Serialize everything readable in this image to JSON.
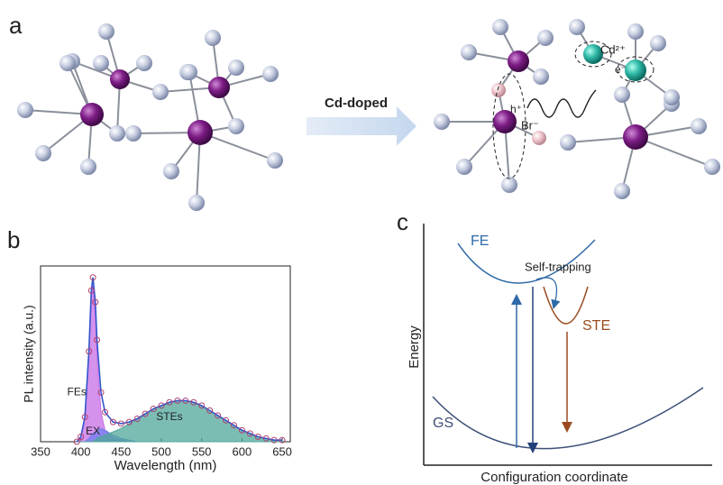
{
  "panel_a": {
    "label": "a",
    "arrow_label": "Cd-doped",
    "dopant": "Cd²⁺",
    "electron": "e⁻",
    "hole": "h⁺",
    "bromide": "Br⁻"
  },
  "chart_data": {
    "type": "area",
    "panel_label": "b",
    "xlabel": "Wavelength (nm)",
    "ylabel": "PL intensity (a.u.)",
    "xlim": [
      350,
      660
    ],
    "xticks": [
      350,
      400,
      450,
      500,
      550,
      600,
      650
    ],
    "ylim": [
      0,
      1.07
    ],
    "x": [
      395,
      400,
      405,
      410,
      413,
      415,
      418,
      420,
      425,
      430,
      440,
      450,
      460,
      470,
      480,
      490,
      500,
      510,
      520,
      530,
      540,
      550,
      560,
      570,
      580,
      590,
      600,
      610,
      620,
      630,
      640,
      650
    ],
    "series": [
      {
        "color": "#b04070",
        "values": [
          0,
          0.03,
          0.15,
          0.55,
          0.92,
          1.0,
          0.85,
          0.62,
          0.3,
          0.18,
          0.12,
          0.11,
          0.12,
          0.14,
          0.17,
          0.2,
          0.22,
          0.24,
          0.25,
          0.25,
          0.24,
          0.22,
          0.19,
          0.16,
          0.13,
          0.1,
          0.07,
          0.05,
          0.03,
          0.02,
          0.01,
          0.01
        ]
      },
      {
        "name": "FEs",
        "color": "#c76ee6",
        "values": [
          0,
          0.03,
          0.15,
          0.53,
          0.88,
          0.95,
          0.78,
          0.52,
          0.18,
          0.07,
          0.02,
          0.01,
          0,
          0,
          0,
          0,
          0,
          0,
          0,
          0,
          0,
          0,
          0,
          0,
          0,
          0,
          0,
          0,
          0,
          0,
          0,
          0
        ]
      },
      {
        "name": "EX",
        "color": "#6f7ef0",
        "values": [
          0,
          0,
          0,
          0.02,
          0.04,
          0.05,
          0.06,
          0.07,
          0.08,
          0.07,
          0.04,
          0.02,
          0.01,
          0,
          0,
          0,
          0,
          0,
          0,
          0,
          0,
          0,
          0,
          0,
          0,
          0,
          0,
          0,
          0,
          0,
          0,
          0
        ]
      },
      {
        "name": "STEs",
        "color": "#4fa79a",
        "values": [
          0,
          0,
          0,
          0,
          0,
          0,
          0.01,
          0.02,
          0.03,
          0.04,
          0.06,
          0.08,
          0.11,
          0.14,
          0.17,
          0.2,
          0.22,
          0.24,
          0.25,
          0.25,
          0.24,
          0.22,
          0.19,
          0.16,
          0.13,
          0.1,
          0.07,
          0.05,
          0.03,
          0.02,
          0.01,
          0.01
        ]
      }
    ]
  },
  "panel_c": {
    "label": "c",
    "ylabel": "Energy",
    "xlabel": "Configuration coordinate",
    "fe": "FE",
    "self_trapping": "Self-trapping",
    "ste": "STE",
    "gs": "GS"
  }
}
